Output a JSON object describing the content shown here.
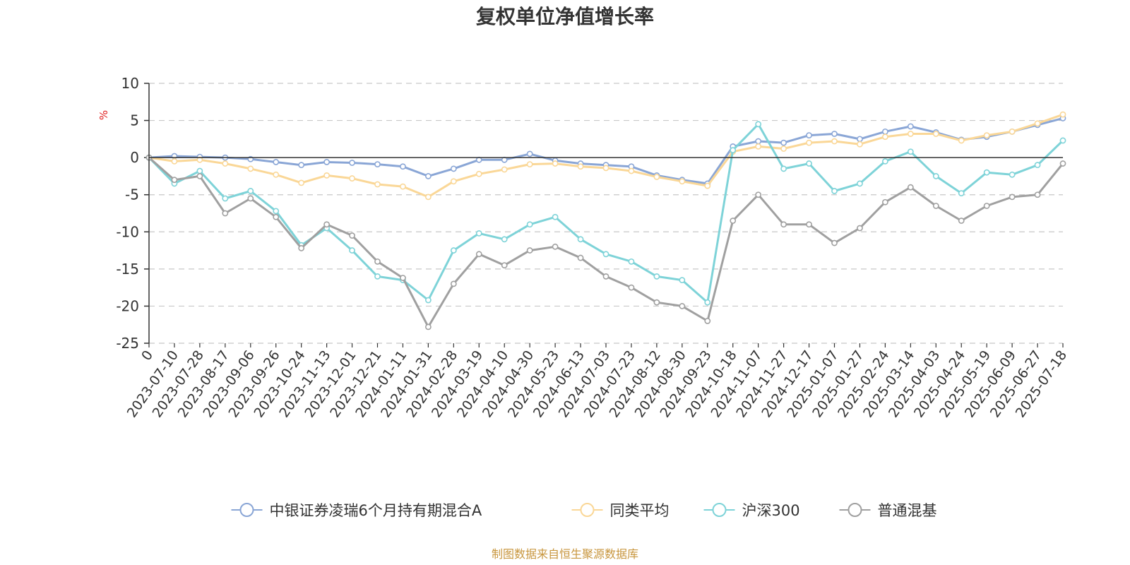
{
  "chart_data": {
    "type": "line",
    "title": "复权单位净值增长率",
    "ylabel": "%",
    "xlabel": "",
    "ylim": [
      -25,
      10
    ],
    "yticks": [
      10,
      5,
      0,
      -5,
      -10,
      -15,
      -20,
      -25
    ],
    "grid": true,
    "legend_position": "bottom",
    "x": [
      "0",
      "2023-07-10",
      "2023-07-28",
      "2023-08-17",
      "2023-09-06",
      "2023-09-26",
      "2023-10-24",
      "2023-11-13",
      "2023-12-01",
      "2023-12-21",
      "2024-01-11",
      "2024-01-31",
      "2024-02-28",
      "2024-03-19",
      "2024-04-10",
      "2024-04-30",
      "2024-05-23",
      "2024-06-13",
      "2024-07-03",
      "2024-07-23",
      "2024-08-12",
      "2024-08-30",
      "2024-09-23",
      "2024-10-18",
      "2024-11-07",
      "2024-11-27",
      "2024-12-17",
      "2025-01-07",
      "2025-01-27",
      "2025-02-24",
      "2025-03-14",
      "2025-04-03",
      "2025-04-24",
      "2025-05-19",
      "2025-06-09",
      "2025-06-27",
      "2025-07-18"
    ],
    "series": [
      {
        "name": "中银证券凌瑞6个月持有期混合A",
        "color": "#8aa6d6",
        "values": [
          0,
          0.2,
          0.1,
          0,
          -0.2,
          -0.6,
          -1.0,
          -0.6,
          -0.7,
          -0.9,
          -1.2,
          -2.5,
          -1.5,
          -0.3,
          -0.3,
          0.5,
          -0.4,
          -0.8,
          -1.0,
          -1.2,
          -2.4,
          -3.0,
          -3.5,
          1.5,
          2.2,
          2.0,
          3.0,
          3.2,
          2.5,
          3.5,
          4.2,
          3.4,
          2.4,
          2.8,
          3.5,
          4.4,
          5.3
        ]
      },
      {
        "name": "同类平均",
        "color": "#fad797",
        "values": [
          0,
          -0.5,
          -0.3,
          -0.8,
          -1.5,
          -2.3,
          -3.4,
          -2.4,
          -2.8,
          -3.6,
          -3.9,
          -5.3,
          -3.2,
          -2.2,
          -1.6,
          -0.9,
          -0.8,
          -1.2,
          -1.4,
          -1.8,
          -2.6,
          -3.2,
          -3.8,
          0.8,
          1.5,
          1.2,
          2.0,
          2.2,
          1.8,
          2.8,
          3.2,
          3.2,
          2.3,
          3.0,
          3.5,
          4.6,
          5.8
        ]
      },
      {
        "name": "沪深300",
        "color": "#7ed3d8",
        "values": [
          0,
          -3.5,
          -1.8,
          -5.5,
          -4.5,
          -7.2,
          -11.8,
          -9.5,
          -12.5,
          -16.0,
          -16.5,
          -19.2,
          -12.5,
          -10.2,
          -11.0,
          -9.0,
          -8.0,
          -11.0,
          -13.0,
          -14.0,
          -16.0,
          -16.5,
          -19.5,
          1.0,
          4.5,
          -1.5,
          -0.8,
          -4.5,
          -3.5,
          -0.5,
          0.8,
          -2.5,
          -4.8,
          -2.0,
          -2.3,
          -1.0,
          2.3
        ]
      },
      {
        "name": "普通混基",
        "color": "#a0a0a0",
        "values": [
          0,
          -3.0,
          -2.5,
          -7.5,
          -5.5,
          -8.0,
          -12.2,
          -9.0,
          -10.5,
          -14.0,
          -16.2,
          -22.8,
          -17.0,
          -13.0,
          -14.5,
          -12.5,
          -12.0,
          -13.5,
          -16.0,
          -17.5,
          -19.5,
          -20.0,
          -22.0,
          -8.5,
          -5.0,
          -9.0,
          -9.0,
          -11.5,
          -9.5,
          -6.0,
          -4.0,
          -6.5,
          -8.5,
          -6.5,
          -5.3,
          -5.0,
          -0.8
        ]
      }
    ]
  },
  "footer": {
    "source": "制图数据来自恒生聚源数据库"
  }
}
